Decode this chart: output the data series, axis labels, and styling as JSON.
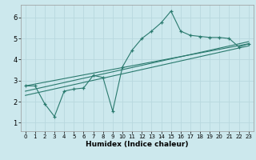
{
  "title": "",
  "xlabel": "Humidex (Indice chaleur)",
  "background_color": "#cce8ed",
  "grid_color": "#b8d8de",
  "line_color": "#2a7a6e",
  "xlim": [
    -0.5,
    23.5
  ],
  "ylim": [
    0.6,
    6.6
  ],
  "xticks": [
    0,
    1,
    2,
    3,
    4,
    5,
    6,
    7,
    8,
    9,
    10,
    11,
    12,
    13,
    14,
    15,
    16,
    17,
    18,
    19,
    20,
    21,
    22,
    23
  ],
  "yticks": [
    1,
    2,
    3,
    4,
    5,
    6
  ],
  "curve1_x": [
    0,
    1,
    2,
    3,
    4,
    5,
    6,
    7,
    8,
    9,
    10,
    11,
    12,
    13,
    14,
    15,
    16,
    17,
    18,
    19,
    20,
    21,
    22,
    23
  ],
  "curve1_y": [
    2.75,
    2.75,
    1.9,
    1.3,
    2.5,
    2.6,
    2.65,
    3.25,
    3.15,
    1.55,
    3.65,
    4.45,
    5.0,
    5.35,
    5.75,
    6.3,
    5.35,
    5.15,
    5.1,
    5.05,
    5.05,
    5.0,
    4.6,
    4.75
  ],
  "line2_x": [
    0,
    23
  ],
  "line2_y": [
    2.75,
    4.75
  ],
  "line3_x": [
    0,
    23
  ],
  "line3_y": [
    2.5,
    4.85
  ],
  "line4_x": [
    0,
    23
  ],
  "line4_y": [
    2.3,
    4.65
  ]
}
